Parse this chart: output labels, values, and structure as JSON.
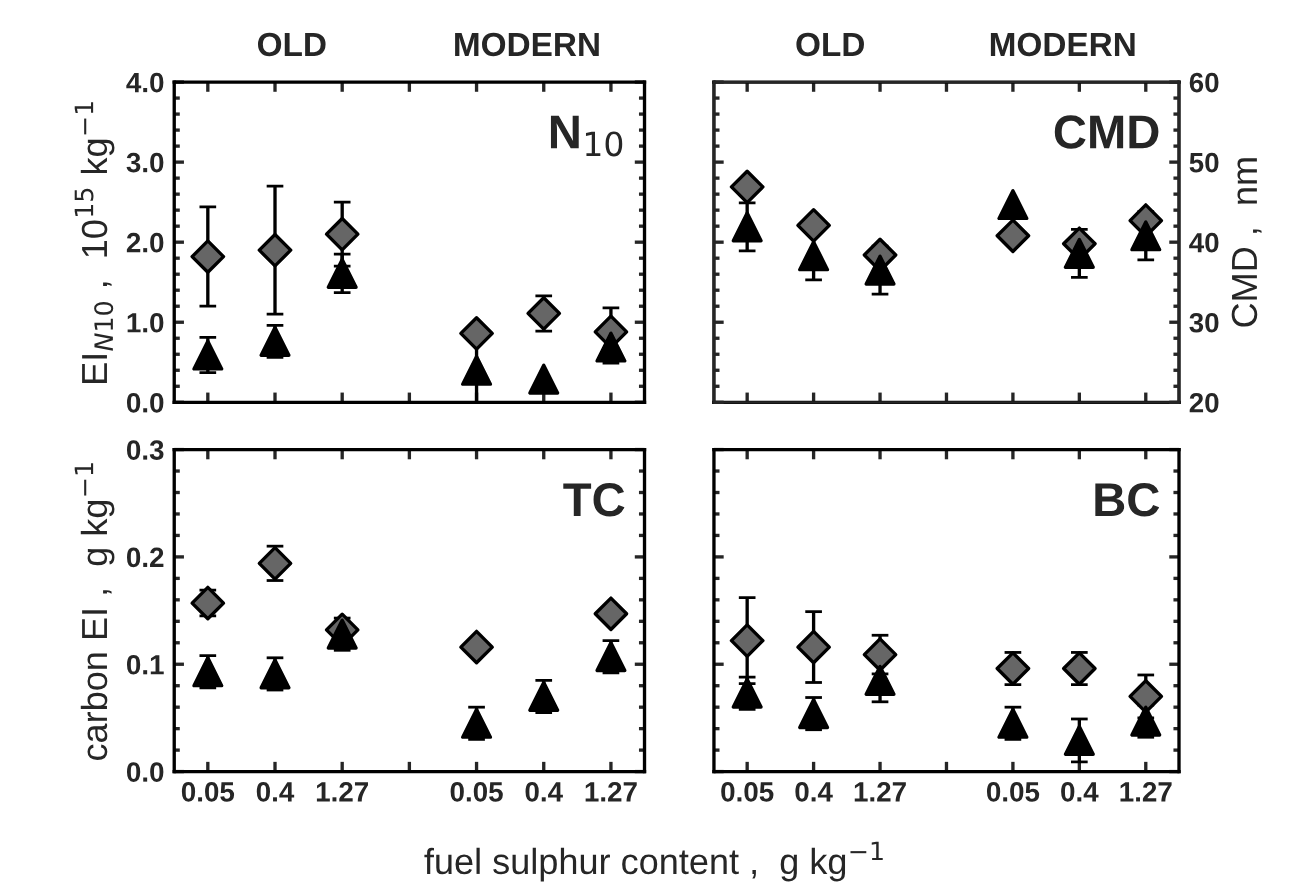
{
  "chart_data": [
    {
      "type": "scatter",
      "ylabel": "EI$_{N10}$ ,  10$^{15}$ kg$^{−1}$",
      "categories": [
        "0.05",
        "0.4",
        "1.27",
        null,
        "0.05",
        "0.4",
        "1.27"
      ],
      "series": [
        {
          "color": "#666666",
          "marker": "diamond",
          "values": [
            1.82,
            1.9,
            2.1,
            null,
            0.86,
            1.11,
            0.88
          ],
          "errors": [
            0.62,
            0.8,
            0.4,
            null,
            null,
            0.22,
            0.3
          ]
        },
        {
          "color": "#000000",
          "marker": "triangle",
          "values": [
            0.59,
            0.76,
            1.61,
            null,
            0.4,
            0.29,
            0.69
          ],
          "errors": [
            0.22,
            0.2,
            0.24,
            null,
            0.4,
            null,
            0.2
          ]
        }
      ],
      "ylim": [
        0,
        4
      ],
      "yticks": [
        {
          "value": 0,
          "label": "0.0"
        },
        {
          "value": 1,
          "label": "1.0"
        },
        {
          "value": 2,
          "label": "2.0"
        },
        {
          "value": 3,
          "label": "3.0"
        },
        {
          "value": 4,
          "label": "4.0"
        }
      ],
      "tick_labels": "y",
      "annotations": [
        "OLD",
        "MODERN",
        "N$_{10}$"
      ]
    },
    {
      "type": "scatter",
      "y2label": "CMD ,  nm",
      "categories": [
        "0.05",
        "0.4",
        "1.27",
        null,
        "0.05",
        "0.4",
        "1.27"
      ],
      "series": [
        {
          "color": "#666666",
          "marker": "diamond",
          "axis": "y2",
          "values": [
            46.9,
            42.1,
            38.4,
            null,
            40.8,
            39.8,
            42.7
          ]
        },
        {
          "color": "#000000",
          "marker": "triangle",
          "axis": "y2",
          "values": [
            41.9,
            38.3,
            36.5,
            null,
            44.7,
            38.6,
            40.8
          ],
          "errors": [
            3,
            3,
            3,
            null,
            null,
            3,
            3
          ]
        }
      ],
      "y2lim": [
        20,
        60
      ],
      "y2ticks": [
        20,
        30,
        40,
        50,
        60
      ],
      "tick_labels": "y",
      "annotations": [
        "OLD",
        "MODERN",
        "CMD"
      ]
    },
    {
      "type": "scatter",
      "ylabel": "carbon EI ,  g kg$^{−1}$",
      "xlabel": "fuel sulphur content ,  g kg$^{−1}$",
      "categories": [
        "0.05",
        "0.4",
        "1.27",
        null,
        "0.05",
        "0.4",
        "1.27"
      ],
      "series": [
        {
          "color": "#666666",
          "marker": "diamond",
          "values": [
            0.157,
            0.194,
            0.132,
            null,
            0.116,
            null,
            0.147
          ],
          "errors": [
            0.012,
            0.016,
            null,
            null,
            null,
            null,
            null
          ]
        },
        {
          "color": "#000000",
          "marker": "triangle",
          "values": [
            0.093,
            0.091,
            0.128,
            null,
            0.045,
            0.07,
            0.107
          ],
          "errors": [
            0.015,
            0.015,
            0.015,
            null,
            0.015,
            0.015,
            0.015
          ]
        }
      ],
      "ylim": [
        0,
        0.3
      ],
      "yticks": [
        {
          "value": 0,
          "label": "0.0"
        },
        0.1,
        0.2,
        0.3
      ],
      "annotations": [
        "TC"
      ]
    },
    {
      "type": "scatter",
      "categories": [
        "0.05",
        "0.4",
        "1.27",
        null,
        "0.05",
        "0.4",
        "1.27"
      ],
      "series": [
        {
          "color": "#666666",
          "marker": "diamond",
          "values": [
            0.122,
            0.116,
            0.109,
            null,
            0.096,
            0.096,
            0.07
          ],
          "errors": [
            0.04,
            0.033,
            0.018,
            null,
            0.015,
            0.015,
            0.02
          ]
        },
        {
          "color": "#000000",
          "marker": "triangle",
          "values": [
            0.073,
            0.054,
            0.085,
            null,
            0.045,
            0.029,
            0.047
          ],
          "errors": [
            0.015,
            0.015,
            0.02,
            null,
            0.015,
            0.02,
            0.015
          ]
        }
      ],
      "ylim": [
        0,
        0.3
      ],
      "yticks": [
        0,
        0.1,
        0.2,
        0.3
      ],
      "tick_labels": "x",
      "annotations": [
        "BC"
      ]
    }
  ]
}
